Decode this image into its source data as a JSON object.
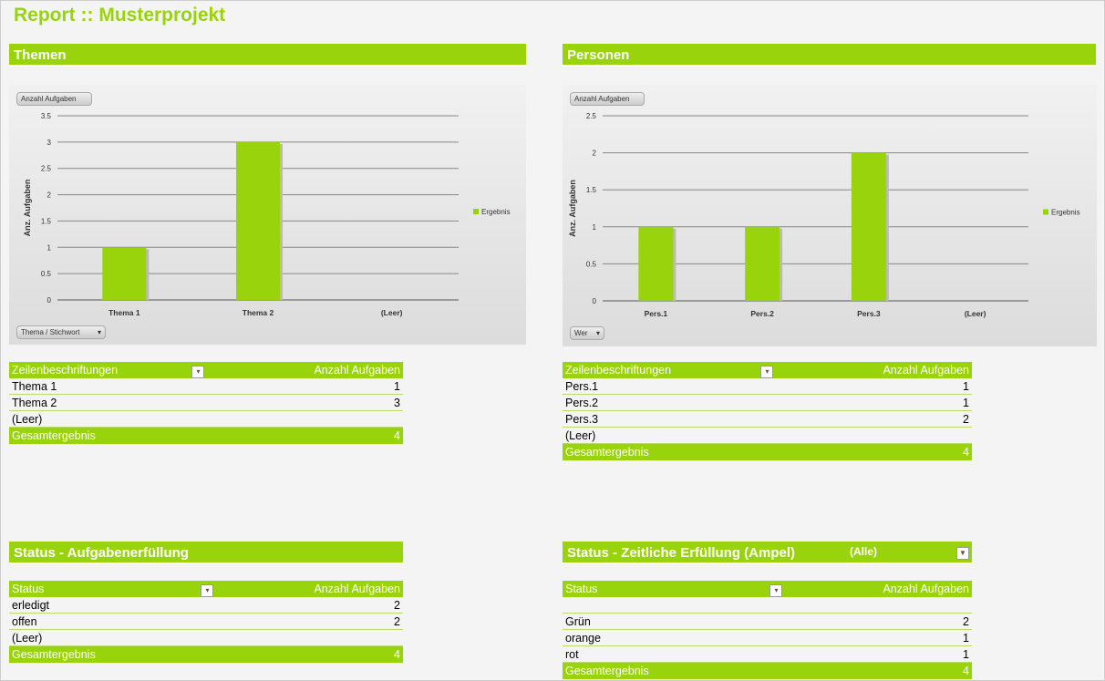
{
  "title": "Report :: Musterprojekt",
  "sections": {
    "themen": "Themen",
    "personen": "Personen",
    "status": "Status - Aufgabenerfüllung",
    "ampel": "Status - Zeitliche Erfüllung (Ampel)",
    "ampel_filter": "(Alle)"
  },
  "colors": {
    "accent": "#99d30b"
  },
  "chart_data": [
    {
      "type": "bar",
      "categories": [
        "Thema 1",
        "Thema 2",
        "(Leer)"
      ],
      "series": [
        {
          "name": "Ergebnis",
          "values": [
            1,
            3,
            0
          ]
        }
      ],
      "ylabel": "Anz. Aufgaben",
      "ylim": [
        0,
        3.5
      ],
      "yticks": [
        "0",
        "0.5",
        "1",
        "1.5",
        "2",
        "2.5",
        "3",
        "3.5"
      ],
      "legend": "right",
      "grid": true,
      "value_button": "Anzahl Aufgaben",
      "axis_button": "Thema / Stichwort"
    },
    {
      "type": "bar",
      "categories": [
        "Pers.1",
        "Pers.2",
        "Pers.3",
        "(Leer)"
      ],
      "series": [
        {
          "name": "Ergebnis",
          "values": [
            1,
            1,
            2,
            0
          ]
        }
      ],
      "ylabel": "Anz. Aufgaben",
      "ylim": [
        0,
        2.5
      ],
      "yticks": [
        "0",
        "0.5",
        "1",
        "1.5",
        "2",
        "2.5"
      ],
      "legend": "right",
      "grid": true,
      "value_button": "Anzahl Aufgaben",
      "axis_button": "Wer"
    }
  ],
  "tables": {
    "themen": {
      "h1": "Zeilenbeschriftungen",
      "h2": "Anzahl Aufgaben",
      "rows": [
        [
          "Thema 1",
          "1"
        ],
        [
          "Thema 2",
          "3"
        ],
        [
          "(Leer)",
          ""
        ]
      ],
      "total": [
        "Gesamtergebnis",
        "4"
      ]
    },
    "personen": {
      "h1": "Zeilenbeschriftungen",
      "h2": "Anzahl Aufgaben",
      "rows": [
        [
          "Pers.1",
          "1"
        ],
        [
          "Pers.2",
          "1"
        ],
        [
          "Pers.3",
          "2"
        ],
        [
          "(Leer)",
          ""
        ]
      ],
      "total": [
        "Gesamtergebnis",
        "4"
      ]
    },
    "status": {
      "h1": "Status",
      "h2": "Anzahl Aufgaben",
      "rows": [
        [
          "erledigt",
          "2"
        ],
        [
          "offen",
          "2"
        ],
        [
          "(Leer)",
          ""
        ]
      ],
      "total": [
        "Gesamtergebnis",
        "4"
      ]
    },
    "ampel": {
      "h1": "Status",
      "h2": "Anzahl Aufgaben",
      "rows": [
        [
          "",
          ""
        ],
        [
          "Grün",
          "2"
        ],
        [
          "orange",
          "1"
        ],
        [
          "rot",
          "1"
        ]
      ],
      "total": [
        "Gesamtergebnis",
        "4"
      ]
    }
  }
}
